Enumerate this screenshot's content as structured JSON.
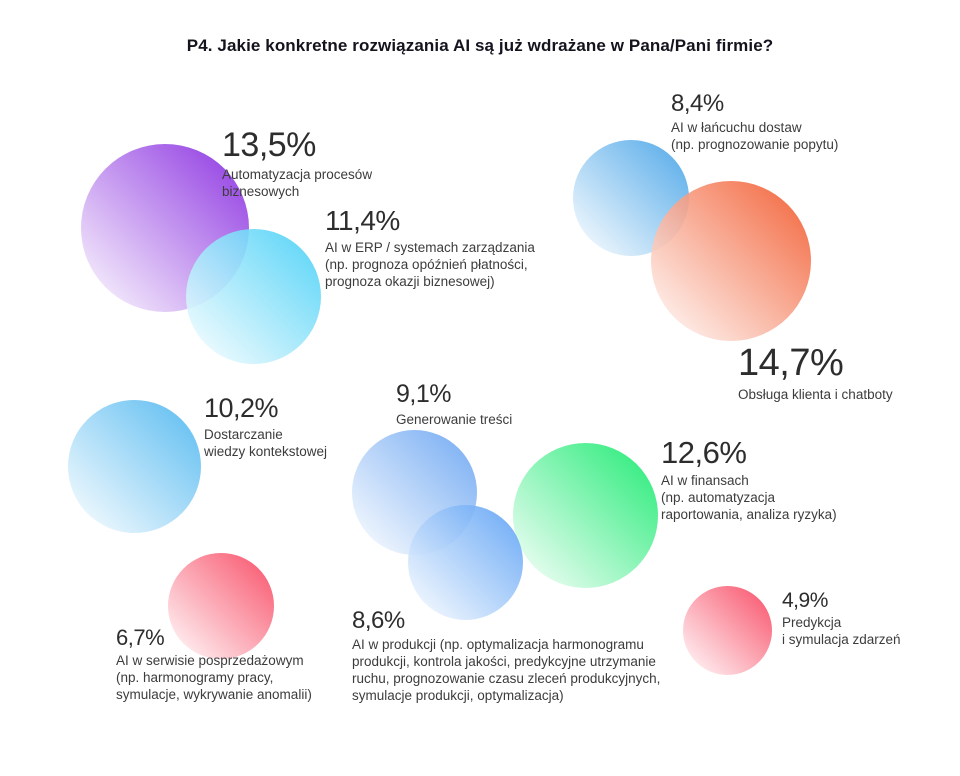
{
  "title": "P4. Jakie konkretne rozwiązania AI są już wdrażane w Pana/Pani firmie?",
  "chart_data": {
    "type": "bubble",
    "title": "P4. Jakie konkretne rozwiązania AI są już wdrażane w Pana/Pani firmie?",
    "unit": "%",
    "background": "#ffffff",
    "items": [
      {
        "value": 13.5,
        "display": "13,5%",
        "label": "Automatyzacja procesów\nbiznesowych",
        "color": "#8a2fe0"
      },
      {
        "value": 11.4,
        "display": "11,4%",
        "label": "AI w ERP / systemach zarządzania\n(np. prognoza opóźnień płatności,\nprognoza okazji biznesowej)",
        "color": "#4fd2f7"
      },
      {
        "value": 8.4,
        "display": "8,4%",
        "label": "AI w łańcuchu dostaw\n(np. prognozowanie popytu)",
        "color": "#4ca6e8"
      },
      {
        "value": 14.7,
        "display": "14,7%",
        "label": "Obsługa klienta i chatboty",
        "color": "#f25e33"
      },
      {
        "value": 10.2,
        "display": "10,2%",
        "label": "Dostarczanie\nwiedzy kontekstowej",
        "color": "#54b9f0"
      },
      {
        "value": 9.1,
        "display": "9,1%",
        "label": "Generowanie treści",
        "color": "#6fa8f2"
      },
      {
        "value": 12.6,
        "display": "12,6%",
        "label": "AI w finansach\n(np. automatyzacja\nraportowania, analiza ryzyka)",
        "color": "#1bea71"
      },
      {
        "value": 6.7,
        "display": "6,7%",
        "label": "AI w serwisie posprzedażowym\n(np. harmonogramy pracy,\nsymulacje, wykrywanie anomalii)",
        "color": "#f84b64"
      },
      {
        "value": 8.6,
        "display": "8,6%",
        "label": "AI w produkcji (np. optymalizacja harmonogramu\nprodukcji, kontrola jakości, predykcyjne utrzymanie\nruchu, prognozowanie czasu zleceń produkcyjnych,\nsymulacje produkcji, optymalizacja)",
        "color": "#63a5f5"
      },
      {
        "value": 4.9,
        "display": "4,9%",
        "label": "Predykcja\ni symulacja zdarzeń",
        "color": "#f84b64"
      }
    ]
  }
}
